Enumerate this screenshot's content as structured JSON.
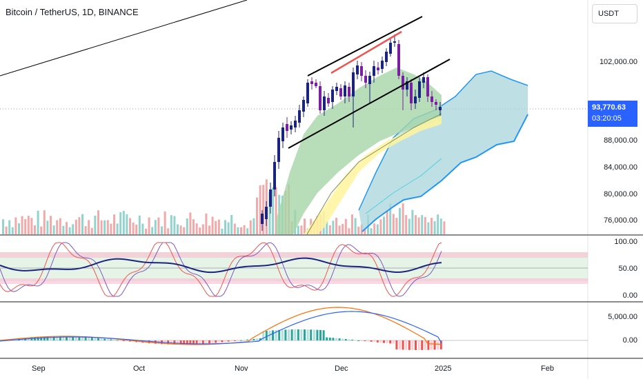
{
  "header": {
    "title": "Bitcoin / TetherUS, 1D, BINANCE",
    "currency": "USDT"
  },
  "price_axis": {
    "labels": [
      "102,000.00",
      "88,000.00",
      "84,000.00",
      "80,000.00",
      "76,000.00"
    ]
  },
  "last_price": {
    "value": "93,770.63",
    "countdown": "03:20:05"
  },
  "stoch_rsi_axis": {
    "labels": [
      "100.00",
      "50.00",
      "0.00"
    ]
  },
  "macd_axis": {
    "labels": [
      "5,000.00",
      "0.00"
    ]
  },
  "time_axis": {
    "labels": [
      "Sep",
      "Oct",
      "Nov",
      "Dec",
      "2025",
      "Feb"
    ]
  },
  "colors": {
    "bull": "#26a69a",
    "bear": "#7b1fa2",
    "candle_blue": "#1a237e",
    "cloud": "#a8d5dc",
    "cloud_edge": "#2196f3",
    "band_green": "#a5d6a7",
    "band_yellow": "#fff59d",
    "trendline": "#000000",
    "highlight": "#ef5350",
    "stoch_k": "#7e57c2",
    "stoch_d": "#ef5350",
    "rsi": "#1a237e",
    "macd": "#2962ff",
    "signal": "#ff6d00"
  },
  "chart_data": [
    {
      "type": "candlestick",
      "title": "Bitcoin / TetherUS, 1D, BINANCE",
      "y_axis_ticks": [
        76000,
        80000,
        84000,
        88000,
        102000
      ],
      "last_price": 93770.63,
      "x_ticks": [
        "Sep",
        "Oct",
        "Nov",
        "Dec",
        "2025",
        "Feb"
      ],
      "grid": false,
      "overlays": [
        "ascending channel",
        "ichimoku cloud",
        "moving-average bands",
        "volume"
      ]
    },
    {
      "type": "line",
      "indicator": "stochastic RSI",
      "ylim": [
        0,
        100
      ],
      "y_axis_ticks": [
        0,
        50,
        100
      ]
    },
    {
      "type": "bar",
      "indicator": "MACD",
      "y_axis_ticks": [
        0,
        5000
      ]
    }
  ]
}
